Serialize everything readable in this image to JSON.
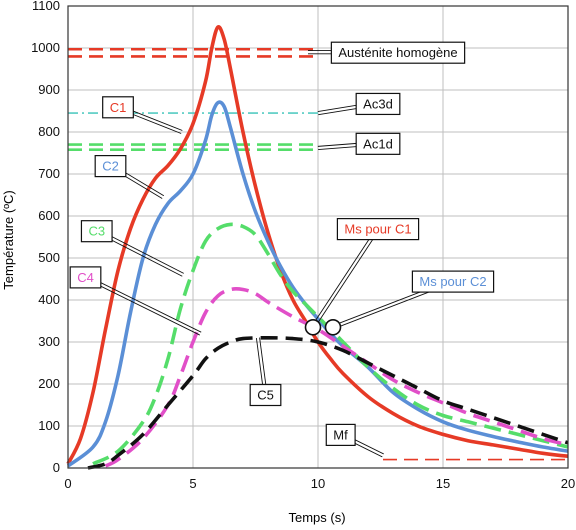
{
  "chart_data": {
    "type": "line",
    "xlabel": "Temps (s)",
    "ylabel": "Température (ºC)",
    "xlim": [
      0,
      20
    ],
    "ylim": [
      0,
      1100
    ],
    "xticks": [
      0,
      5,
      10,
      15,
      20
    ],
    "yticks": [
      0,
      100,
      200,
      300,
      400,
      500,
      600,
      700,
      800,
      900,
      1000,
      1100
    ],
    "grid": true,
    "series": [
      {
        "name": "C1",
        "color": "#e63a26",
        "dash": "solid",
        "x": [
          0,
          0.5,
          1,
          1.5,
          2,
          2.5,
          3,
          3.5,
          4,
          4.5,
          5,
          5.5,
          5.75,
          6,
          6.25,
          6.5,
          7,
          7.5,
          8,
          8.5,
          9,
          9.5,
          10,
          10.5,
          11,
          12,
          13,
          14,
          15,
          16,
          17,
          18,
          19,
          20
        ],
        "y": [
          10,
          70,
          180,
          330,
          470,
          570,
          640,
          690,
          720,
          760,
          820,
          920,
          1000,
          1050,
          1020,
          950,
          800,
          670,
          560,
          470,
          400,
          350,
          300,
          260,
          225,
          170,
          130,
          100,
          80,
          65,
          55,
          45,
          35,
          28
        ]
      },
      {
        "name": "C2",
        "color": "#5b8fd6",
        "dash": "solid",
        "x": [
          0,
          1,
          1.5,
          2,
          2.5,
          3,
          3.5,
          4,
          4.5,
          5,
          5.5,
          5.75,
          6,
          6.25,
          6.5,
          7,
          7.5,
          8,
          8.5,
          9,
          9.5,
          10,
          10.5,
          11,
          12,
          13,
          14,
          15,
          16,
          17,
          18,
          19,
          20
        ],
        "y": [
          5,
          50,
          110,
          220,
          370,
          500,
          580,
          630,
          660,
          700,
          780,
          840,
          870,
          860,
          810,
          700,
          610,
          540,
          480,
          430,
          390,
          355,
          320,
          290,
          240,
          180,
          140,
          110,
          90,
          75,
          62,
          50,
          40
        ]
      },
      {
        "name": "C3",
        "color": "#55dd6a",
        "dash": "dashed",
        "x": [
          1,
          2,
          3,
          3.5,
          4,
          4.5,
          5,
          5.5,
          6,
          6.5,
          7,
          7.5,
          8,
          8.5,
          9,
          9.5,
          10,
          10.5,
          11,
          12,
          13,
          14,
          15,
          16,
          17,
          18,
          19,
          20
        ],
        "y": [
          10,
          40,
          110,
          170,
          260,
          380,
          470,
          540,
          570,
          580,
          575,
          555,
          510,
          460,
          420,
          390,
          360,
          330,
          300,
          240,
          190,
          150,
          125,
          110,
          95,
          80,
          65,
          50
        ]
      },
      {
        "name": "C4",
        "color": "#e14fc8",
        "dash": "dashed",
        "x": [
          1.5,
          2,
          3,
          4,
          4.5,
          5,
          5.5,
          6,
          6.5,
          7,
          7.5,
          8,
          9,
          10,
          11,
          12,
          13,
          14,
          15,
          16,
          17,
          18,
          19,
          20
        ],
        "y": [
          5,
          20,
          70,
          150,
          220,
          300,
          370,
          410,
          425,
          425,
          415,
          395,
          360,
          330,
          290,
          250,
          210,
          180,
          155,
          130,
          110,
          90,
          70,
          55
        ]
      },
      {
        "name": "C5",
        "color": "#111111",
        "dash": "dashed",
        "x": [
          0.8,
          1.5,
          2,
          3,
          4,
          5,
          5.5,
          6,
          6.5,
          7,
          8,
          9,
          10,
          11,
          12,
          13,
          14,
          15,
          16,
          17,
          18,
          19,
          20
        ],
        "y": [
          0,
          10,
          30,
          80,
          150,
          220,
          260,
          285,
          300,
          308,
          310,
          308,
          300,
          280,
          250,
          220,
          190,
          160,
          140,
          120,
          100,
          80,
          60
        ]
      }
    ],
    "reference_lines": [
      {
        "name": "Austénite homogène",
        "color": "#e63a26",
        "dash": "dashed",
        "double": true,
        "y": [
          997,
          980
        ],
        "x": [
          0,
          10
        ]
      },
      {
        "name": "Ac3d",
        "color": "#55ccc2",
        "dash": "dashdot",
        "double": false,
        "y": [
          845
        ],
        "x": [
          0,
          10
        ]
      },
      {
        "name": "Ac1d",
        "color": "#55dd6a",
        "dash": "dashed",
        "double": true,
        "y": [
          770,
          758
        ],
        "x": [
          0,
          10
        ]
      },
      {
        "name": "Mf",
        "color": "#e63a26",
        "dash": "dashed",
        "double": false,
        "y": [
          20
        ],
        "x": [
          12.6,
          20
        ]
      }
    ],
    "markers": [
      {
        "name": "Ms pour C1",
        "x": 9.8,
        "y": 335
      },
      {
        "name": "Ms pour C2",
        "x": 10.6,
        "y": 335
      }
    ],
    "annotations": [
      {
        "text": "C1",
        "color": "#e63a26",
        "lx": 2.0,
        "ly": 860,
        "tx": 4.55,
        "ty": 800
      },
      {
        "text": "C2",
        "color": "#5b8fd6",
        "lx": 1.7,
        "ly": 720,
        "tx": 3.8,
        "ty": 645
      },
      {
        "text": "C3",
        "color": "#55dd6a",
        "lx": 1.15,
        "ly": 565,
        "tx": 4.6,
        "ty": 460
      },
      {
        "text": "C4",
        "color": "#e14fc8",
        "lx": 0.7,
        "ly": 455,
        "tx": 5.3,
        "ty": 320
      },
      {
        "text": "C5",
        "color": "#111111",
        "lx": 7.9,
        "ly": 175,
        "tx": 7.6,
        "ty": 310
      },
      {
        "text": "Austénite homogène",
        "color": "#111111",
        "lx": 13.2,
        "ly": 990,
        "tx": 9.6,
        "ty": 990
      },
      {
        "text": "Ac3d",
        "color": "#111111",
        "lx": 12.4,
        "ly": 868,
        "tx": 10.0,
        "ty": 845
      },
      {
        "text": "Ac1d",
        "color": "#111111",
        "lx": 12.4,
        "ly": 773,
        "tx": 10.0,
        "ty": 762
      },
      {
        "text": "Ms pour C1",
        "color": "#e63a26",
        "lx": 12.4,
        "ly": 570,
        "tx": 9.8,
        "ty": 335
      },
      {
        "text": "Ms pour C2",
        "color": "#5b8fd6",
        "lx": 15.4,
        "ly": 445,
        "tx": 10.6,
        "ty": 335
      },
      {
        "text": "Mf",
        "color": "#111111",
        "lx": 10.9,
        "ly": 80,
        "tx": 12.6,
        "ty": 30
      }
    ]
  }
}
